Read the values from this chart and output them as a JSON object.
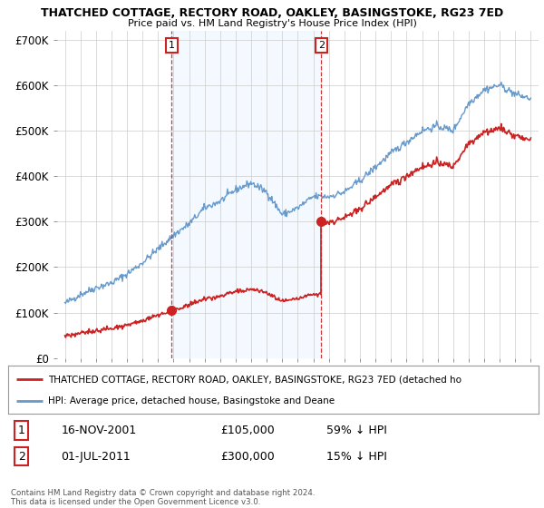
{
  "title": "THATCHED COTTAGE, RECTORY ROAD, OAKLEY, BASINGSTOKE, RG23 7ED",
  "subtitle": "Price paid vs. HM Land Registry's House Price Index (HPI)",
  "hpi_color": "#6699cc",
  "price_color": "#cc2222",
  "marker_color": "#cc2222",
  "background_color": "#ffffff",
  "plot_bg_color": "#ffffff",
  "shade_color": "#ddeeff",
  "ylim": [
    0,
    720000
  ],
  "yticks": [
    0,
    100000,
    200000,
    300000,
    400000,
    500000,
    600000,
    700000
  ],
  "ytick_labels": [
    "£0",
    "£100K",
    "£200K",
    "£300K",
    "£400K",
    "£500K",
    "£600K",
    "£700K"
  ],
  "sale1_year": 2001.88,
  "sale1_price": 105000,
  "sale1_label": "1",
  "sale2_year": 2011.5,
  "sale2_price": 300000,
  "sale2_label": "2",
  "xlim_left": 1994.5,
  "xlim_right": 2025.5,
  "legend_line1": "THATCHED COTTAGE, RECTORY ROAD, OAKLEY, BASINGSTOKE, RG23 7ED (detached ho",
  "legend_line2": "HPI: Average price, detached house, Basingstoke and Deane",
  "note1_num": "1",
  "note1_date": "16-NOV-2001",
  "note1_price": "£105,000",
  "note1_hpi": "59% ↓ HPI",
  "note2_num": "2",
  "note2_date": "01-JUL-2011",
  "note2_price": "£300,000",
  "note2_hpi": "15% ↓ HPI",
  "footer": "Contains HM Land Registry data © Crown copyright and database right 2024.\nThis data is licensed under the Open Government Licence v3.0."
}
